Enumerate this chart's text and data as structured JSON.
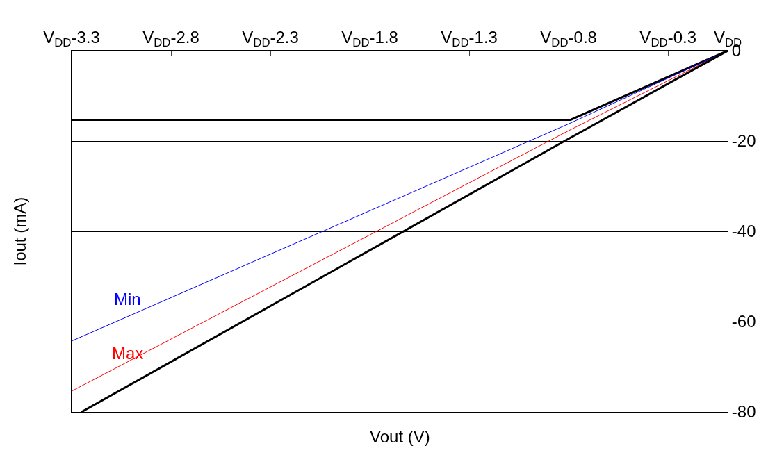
{
  "chart_data": {
    "type": "line",
    "xlabel": "Vout (V)",
    "ylabel": "Iout (mA)",
    "series": [
      {
        "color": "#000000",
        "x": [
          -3.3,
          -0.79,
          0
        ],
        "values": [
          -15.3,
          -15.3,
          0
        ]
      },
      {
        "name": "Min",
        "color": "#0000ff",
        "x": [
          -3.3,
          -0.8,
          0
        ],
        "values": [
          -64.3,
          -16.2,
          0
        ]
      },
      {
        "name": "Max",
        "color": "#ff0000",
        "x": [
          -3.3,
          -0.8,
          0
        ],
        "values": [
          -75.4,
          -17.7,
          0
        ]
      },
      {
        "color": "#000000",
        "x": [
          -3.25,
          -0.8,
          0
        ],
        "values": [
          -80,
          -19.5,
          0
        ]
      }
    ],
    "xlim": [
      -3.3,
      0
    ],
    "ylim": [
      -80,
      0
    ],
    "xticks": [
      {
        "value": -3.3,
        "label": "V$_{DD}$-3.3"
      },
      {
        "value": -2.8,
        "label": "V$_{DD}$-2.8"
      },
      {
        "value": -2.3,
        "label": "V$_{DD}$-2.3"
      },
      {
        "value": -1.8,
        "label": "V$_{DD}$-1.8"
      },
      {
        "value": -1.3,
        "label": "V$_{DD}$-1.3"
      },
      {
        "value": -0.8,
        "label": "V$_{DD}$-0.8"
      },
      {
        "value": -0.3,
        "label": "V$_{DD}$-0.3"
      },
      {
        "value": 0,
        "label": "V$_{DD}$"
      }
    ],
    "yticks": [
      0,
      -20,
      -40,
      -60,
      -80
    ],
    "grid": "y",
    "legend": false,
    "marker": "none",
    "line_style": "solid"
  }
}
